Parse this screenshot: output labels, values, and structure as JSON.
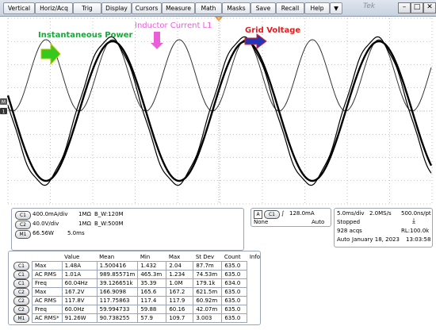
{
  "menu": {
    "items": [
      "Vertical",
      "Horiz/Acq",
      "Trig",
      "Display",
      "Cursors",
      "Measure",
      "Math",
      "Masks",
      "Save",
      "Recall",
      "Help"
    ],
    "dropdown": "▼",
    "brand": "Tek"
  },
  "window_buttons": {
    "minimize": "–",
    "maximize": "□",
    "close": "✕"
  },
  "annotations": {
    "power": "Instantaneous Power",
    "current": "Inductor Current L1",
    "voltage": "Grid Voltage"
  },
  "markers": {
    "ch1": "1",
    "ch2": "2",
    "math": "M",
    "trigger": "T"
  },
  "colors": {
    "power_label": "#1fa33b",
    "current_label": "#e95fd8",
    "voltage_label": "#e31d1d",
    "arrow_green": "#35c81f",
    "arrow_blue": "#2436b3"
  },
  "channels": [
    {
      "id": "C1",
      "scale": "400.0mA/div",
      "impedance": "1MΩ",
      "bw": "B_W:120M"
    },
    {
      "id": "C2",
      "scale": "40.0V/div",
      "impedance": "1MΩ",
      "bw": "B_W:500M"
    },
    {
      "id": "M1",
      "scale": "66.56W",
      "timebase": "5.0ms"
    }
  ],
  "trigger": {
    "source_letter": "A",
    "channel": "C1",
    "slope": "∫",
    "level": "128.0mA",
    "coupling": "None",
    "mode": "Auto"
  },
  "acquisition": {
    "timebase": "5.0ms/div",
    "rate": "2.0MS/s",
    "resolution": "500.0ns/pt",
    "state": "Stopped",
    "acqs": "928 acqs",
    "record": "RL:100.0k",
    "mode": "Auto",
    "date": "January 18, 2023",
    "time": "13:03:58"
  },
  "measurements": {
    "headers": [
      "",
      "Value",
      "Mean",
      "Min",
      "Max",
      "St Dev",
      "Count",
      "Info"
    ],
    "rows": [
      {
        "src": "C1",
        "name": "Max",
        "value": "1.48A",
        "mean": "1.500416",
        "min": "1.432",
        "max": "2.04",
        "stdev": "87.7m",
        "count": "635.0"
      },
      {
        "src": "C1",
        "name": "AC RMS",
        "value": "1.01A",
        "mean": "989.85571m",
        "min": "465.3m",
        "max": "1.234",
        "stdev": "74.53m",
        "count": "635.0"
      },
      {
        "src": "C1",
        "name": "Freq",
        "value": "60.04Hz",
        "mean": "39.126651k",
        "min": "35.39",
        "max": "1.0M",
        "stdev": "179.1k",
        "count": "634.0"
      },
      {
        "src": "C2",
        "name": "Max",
        "value": "167.2V",
        "mean": "166.9098",
        "min": "165.6",
        "max": "167.2",
        "stdev": "621.5m",
        "count": "635.0"
      },
      {
        "src": "C2",
        "name": "AC RMS",
        "value": "117.8V",
        "mean": "117.75863",
        "min": "117.4",
        "max": "117.9",
        "stdev": "60.92m",
        "count": "635.0"
      },
      {
        "src": "C2",
        "name": "Freq",
        "value": "60.0Hz",
        "mean": "59.994733",
        "min": "59.88",
        "max": "60.16",
        "stdev": "42.07m",
        "count": "635.0"
      },
      {
        "src": "M1",
        "name": "AC RMS*",
        "value": "91.26W",
        "mean": "90.738255",
        "min": "57.9",
        "max": "109.7",
        "stdev": "3.003",
        "count": "635.0"
      }
    ]
  }
}
